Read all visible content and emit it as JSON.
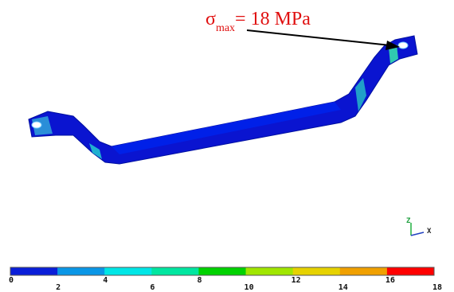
{
  "annotation": {
    "symbol": "σ",
    "subscript": "max",
    "text": "= 18 MPa"
  },
  "legend": {
    "colors": [
      "#0a1ed8",
      "#0a96e6",
      "#00e6e6",
      "#00e6a0",
      "#00d200",
      "#a0e600",
      "#e6d200",
      "#f0a000",
      "#ff0000"
    ],
    "labels": [
      0,
      2,
      4,
      6,
      8,
      10,
      12,
      14,
      16,
      18
    ]
  },
  "triad": {
    "z": "Z",
    "x": "X"
  }
}
